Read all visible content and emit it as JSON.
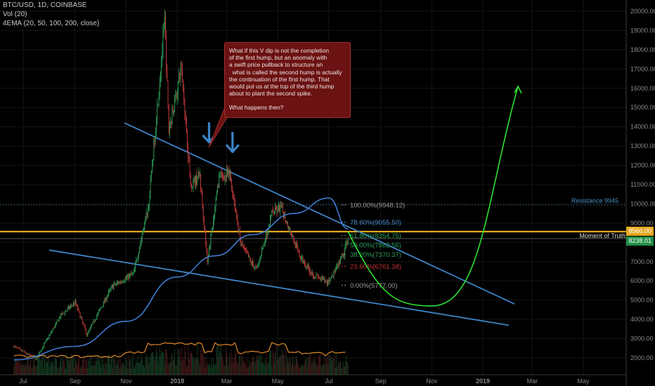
{
  "header": {
    "symbol": "BTC/USD, 1D, COINBASE",
    "volume": "Vol (20)",
    "ema": "4EMA (20, 50, 100, 200, close)"
  },
  "annotation": {
    "lines": [
      "What if this V dip is not the completion",
      "of the first hump, but an anomaly with",
      "a swift price pullback to structure an",
      "  what is called the second hump is actually",
      "the continuation of the first hump. That",
      "would put us at the top of the third hump",
      "about to plant the second spike.",
      "",
      "What happens then?"
    ]
  },
  "labels": {
    "resistance": "Resistance 9945",
    "moment": "Moment of Truth",
    "price_orange": "8560.00",
    "price_green": "8238.01"
  },
  "colors": {
    "up": "#2e9e57",
    "down": "#c63a3a",
    "trend": "#3d84c6",
    "ema": "#3d7bd0",
    "orange": "#e6a81f",
    "projection": "#2ee02e",
    "resistance": "#4a8fc0"
  },
  "chart_data": {
    "type": "candlestick",
    "title": "BTC/USD, 1D, COINBASE",
    "y_axis": {
      "ticks": [
        2000,
        3000,
        4000,
        5000,
        6000,
        7000,
        8000,
        9000,
        10000,
        11000,
        12000,
        13000,
        14000,
        15000,
        16000,
        17000,
        18000,
        19000,
        20000
      ],
      "tick_labels": [
        "2000.00",
        "3000.00",
        "4000.00",
        "5000.00",
        "6000.00",
        "7000.00",
        "8000.00",
        "9000.00",
        "10000.00",
        "11000.00",
        "12000.00",
        "13000.00",
        "14000.00",
        "15000.00",
        "16000.00",
        "17000.00",
        "18000.00",
        "19000.00",
        "20000.00"
      ],
      "range": [
        1500,
        20500
      ]
    },
    "x_axis": {
      "tick_labels": [
        "Jul",
        "Sep",
        "Nov",
        "2018",
        "Mar",
        "May",
        "Jul",
        "Sep",
        "Nov",
        "2019",
        "Mar",
        "May"
      ],
      "tick_dates": [
        "2017-07-01",
        "2017-09-01",
        "2017-11-01",
        "2018-01-01",
        "2018-03-01",
        "2018-05-01",
        "2018-07-01",
        "2018-09-01",
        "2018-11-01",
        "2019-01-01",
        "2019-03-01",
        "2019-05-01"
      ]
    },
    "price_path": [
      [
        "2017-06-20",
        2600
      ],
      [
        "2017-07-16",
        1950
      ],
      [
        "2017-08-15",
        4200
      ],
      [
        "2017-09-01",
        4900
      ],
      [
        "2017-09-15",
        3200
      ],
      [
        "2017-10-15",
        5700
      ],
      [
        "2017-11-10",
        6400
      ],
      [
        "2017-11-28",
        10000
      ],
      [
        "2017-12-17",
        19500
      ],
      [
        "2017-12-22",
        13800
      ],
      [
        "2018-01-06",
        17100
      ],
      [
        "2018-01-17",
        11000
      ],
      [
        "2018-01-28",
        11500
      ],
      [
        "2018-02-06",
        6900
      ],
      [
        "2018-02-20",
        11400
      ],
      [
        "2018-03-05",
        11500
      ],
      [
        "2018-03-18",
        7900
      ],
      [
        "2018-03-31",
        6900
      ],
      [
        "2018-04-06",
        6600
      ],
      [
        "2018-04-24",
        9500
      ],
      [
        "2018-05-05",
        9800
      ],
      [
        "2018-05-28",
        7200
      ],
      [
        "2018-06-13",
        6300
      ],
      [
        "2018-06-29",
        5900
      ],
      [
        "2018-07-10",
        6600
      ],
      [
        "2018-07-19",
        7400
      ],
      [
        "2018-07-24",
        8238
      ]
    ],
    "ema_200": [
      [
        "2017-06-20",
        1900
      ],
      [
        "2017-09-01",
        2600
      ],
      [
        "2017-11-01",
        3900
      ],
      [
        "2018-01-01",
        6200
      ],
      [
        "2018-02-15",
        7300
      ],
      [
        "2018-04-01",
        8400
      ],
      [
        "2018-05-20",
        9500
      ],
      [
        "2018-07-01",
        10300
      ],
      [
        "2018-07-24",
        8700
      ]
    ],
    "fibonacci": [
      {
        "label": "100.00%(9948.12)",
        "value": 9948.12
      },
      {
        "label": "78.60%(9055.50)",
        "value": 9055.5
      },
      {
        "label": "61.80%(8354.75)",
        "value": 8354.75
      },
      {
        "label": "50.00%(7862.56)",
        "value": 7862.56
      },
      {
        "label": "38.20%(7370.37)",
        "value": 7370.37
      },
      {
        "label": "23.60%(6761.38)",
        "value": 6761.38
      },
      {
        "label": "0.00%(5777.00)",
        "value": 5777.0
      }
    ],
    "trendlines": [
      {
        "from": [
          "2017-10-30",
          14200
        ],
        "to": [
          "2019-02-08",
          4800
        ]
      },
      {
        "from": [
          "2017-08-01",
          7600
        ],
        "to": [
          "2019-02-01",
          3700
        ]
      }
    ],
    "horizontal_levels": [
      {
        "label": "Resistance 9945",
        "value": 9945,
        "style": "dotted"
      },
      {
        "label": "Moment of Truth",
        "value": 8560,
        "style": "solid-orange"
      }
    ],
    "projection": [
      [
        "2018-07-24",
        8560
      ],
      [
        "2018-11-01",
        4700
      ],
      [
        "2019-02-12",
        16100
      ]
    ],
    "arrows_down": [
      [
        "2018-02-08",
        13600
      ],
      [
        "2018-03-08",
        13100
      ]
    ]
  }
}
